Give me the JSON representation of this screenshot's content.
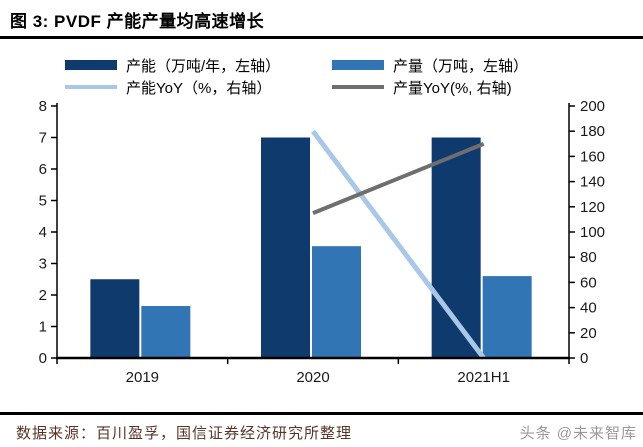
{
  "header": {
    "title": "图 3: PVDF 产能产量均高速增长"
  },
  "legend": {
    "items": [
      {
        "label": "产能（万吨/年，左轴）",
        "swatch": "bar",
        "color": "#0E3A6E"
      },
      {
        "label": "产量（万吨，左轴）",
        "swatch": "bar",
        "color": "#3175B5"
      },
      {
        "label": "产能YoY（%，右轴）",
        "swatch": "line",
        "color": "#A9C7E6"
      },
      {
        "label": "产量YoY(%, 右轴)",
        "swatch": "line",
        "color": "#6E6E6E"
      }
    ]
  },
  "chart_data": {
    "type": "bar",
    "title": "PVDF 产能产量均高速增长",
    "categories": [
      "2019",
      "2020",
      "2021H1"
    ],
    "series": [
      {
        "name": "产能（万吨/年，左轴）",
        "type": "bar",
        "axis": "left",
        "color": "#0E3A6E",
        "values": [
          2.5,
          7.0,
          7.0
        ]
      },
      {
        "name": "产量（万吨，左轴）",
        "type": "bar",
        "axis": "left",
        "color": "#3175B5",
        "values": [
          1.65,
          3.55,
          2.6
        ]
      },
      {
        "name": "产能YoY（%，右轴）",
        "type": "line",
        "axis": "right",
        "color": "#A9C7E6",
        "values": [
          null,
          180,
          0
        ]
      },
      {
        "name": "产量YoY(%, 右轴)",
        "type": "line",
        "axis": "right",
        "color": "#6E6E6E",
        "values": [
          null,
          115,
          170
        ]
      }
    ],
    "left_axis": {
      "min": 0,
      "max": 8,
      "step": 1
    },
    "right_axis": {
      "min": 0,
      "max": 200,
      "step": 20
    },
    "grid": false,
    "legend_position": "top"
  },
  "footer": {
    "source": "数据来源：百川盈孚，国信证券经济研究所整理",
    "watermark": "头条 @未来智库"
  },
  "colors": {
    "capacity_bar": "#0E3A6E",
    "output_bar": "#3175B5",
    "capacity_yoy_line": "#A9C7E6",
    "output_yoy_line": "#6E6E6E",
    "axis": "#000000",
    "source_text": "#5A3425",
    "watermark_text": "#9A9A9A"
  }
}
